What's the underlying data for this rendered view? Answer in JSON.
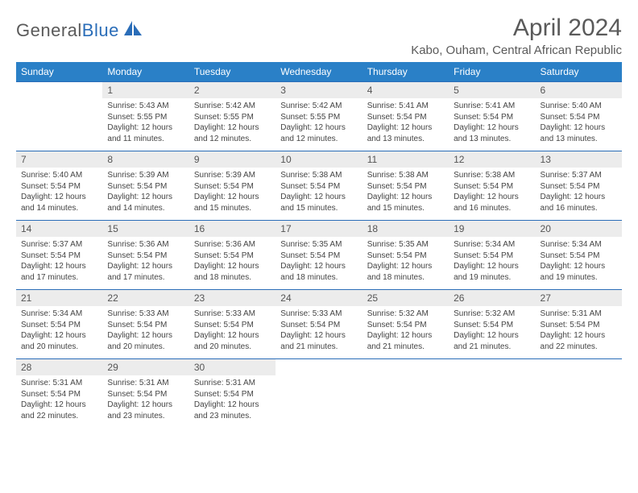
{
  "logo": {
    "word1": "General",
    "word2": "Blue"
  },
  "header": {
    "title": "April 2024",
    "location": "Kabo, Ouham, Central African Republic"
  },
  "colors": {
    "header_bg": "#2a80c7",
    "rule": "#2a6db8",
    "daynum_bg": "#ececec",
    "text": "#444444"
  },
  "weekdays": [
    "Sunday",
    "Monday",
    "Tuesday",
    "Wednesday",
    "Thursday",
    "Friday",
    "Saturday"
  ],
  "days": [
    {
      "n": "",
      "sr": "",
      "ss": "",
      "dl": ""
    },
    {
      "n": "1",
      "sr": "Sunrise: 5:43 AM",
      "ss": "Sunset: 5:55 PM",
      "dl": "Daylight: 12 hours and 11 minutes."
    },
    {
      "n": "2",
      "sr": "Sunrise: 5:42 AM",
      "ss": "Sunset: 5:55 PM",
      "dl": "Daylight: 12 hours and 12 minutes."
    },
    {
      "n": "3",
      "sr": "Sunrise: 5:42 AM",
      "ss": "Sunset: 5:55 PM",
      "dl": "Daylight: 12 hours and 12 minutes."
    },
    {
      "n": "4",
      "sr": "Sunrise: 5:41 AM",
      "ss": "Sunset: 5:54 PM",
      "dl": "Daylight: 12 hours and 13 minutes."
    },
    {
      "n": "5",
      "sr": "Sunrise: 5:41 AM",
      "ss": "Sunset: 5:54 PM",
      "dl": "Daylight: 12 hours and 13 minutes."
    },
    {
      "n": "6",
      "sr": "Sunrise: 5:40 AM",
      "ss": "Sunset: 5:54 PM",
      "dl": "Daylight: 12 hours and 13 minutes."
    },
    {
      "n": "7",
      "sr": "Sunrise: 5:40 AM",
      "ss": "Sunset: 5:54 PM",
      "dl": "Daylight: 12 hours and 14 minutes."
    },
    {
      "n": "8",
      "sr": "Sunrise: 5:39 AM",
      "ss": "Sunset: 5:54 PM",
      "dl": "Daylight: 12 hours and 14 minutes."
    },
    {
      "n": "9",
      "sr": "Sunrise: 5:39 AM",
      "ss": "Sunset: 5:54 PM",
      "dl": "Daylight: 12 hours and 15 minutes."
    },
    {
      "n": "10",
      "sr": "Sunrise: 5:38 AM",
      "ss": "Sunset: 5:54 PM",
      "dl": "Daylight: 12 hours and 15 minutes."
    },
    {
      "n": "11",
      "sr": "Sunrise: 5:38 AM",
      "ss": "Sunset: 5:54 PM",
      "dl": "Daylight: 12 hours and 15 minutes."
    },
    {
      "n": "12",
      "sr": "Sunrise: 5:38 AM",
      "ss": "Sunset: 5:54 PM",
      "dl": "Daylight: 12 hours and 16 minutes."
    },
    {
      "n": "13",
      "sr": "Sunrise: 5:37 AM",
      "ss": "Sunset: 5:54 PM",
      "dl": "Daylight: 12 hours and 16 minutes."
    },
    {
      "n": "14",
      "sr": "Sunrise: 5:37 AM",
      "ss": "Sunset: 5:54 PM",
      "dl": "Daylight: 12 hours and 17 minutes."
    },
    {
      "n": "15",
      "sr": "Sunrise: 5:36 AM",
      "ss": "Sunset: 5:54 PM",
      "dl": "Daylight: 12 hours and 17 minutes."
    },
    {
      "n": "16",
      "sr": "Sunrise: 5:36 AM",
      "ss": "Sunset: 5:54 PM",
      "dl": "Daylight: 12 hours and 18 minutes."
    },
    {
      "n": "17",
      "sr": "Sunrise: 5:35 AM",
      "ss": "Sunset: 5:54 PM",
      "dl": "Daylight: 12 hours and 18 minutes."
    },
    {
      "n": "18",
      "sr": "Sunrise: 5:35 AM",
      "ss": "Sunset: 5:54 PM",
      "dl": "Daylight: 12 hours and 18 minutes."
    },
    {
      "n": "19",
      "sr": "Sunrise: 5:34 AM",
      "ss": "Sunset: 5:54 PM",
      "dl": "Daylight: 12 hours and 19 minutes."
    },
    {
      "n": "20",
      "sr": "Sunrise: 5:34 AM",
      "ss": "Sunset: 5:54 PM",
      "dl": "Daylight: 12 hours and 19 minutes."
    },
    {
      "n": "21",
      "sr": "Sunrise: 5:34 AM",
      "ss": "Sunset: 5:54 PM",
      "dl": "Daylight: 12 hours and 20 minutes."
    },
    {
      "n": "22",
      "sr": "Sunrise: 5:33 AM",
      "ss": "Sunset: 5:54 PM",
      "dl": "Daylight: 12 hours and 20 minutes."
    },
    {
      "n": "23",
      "sr": "Sunrise: 5:33 AM",
      "ss": "Sunset: 5:54 PM",
      "dl": "Daylight: 12 hours and 20 minutes."
    },
    {
      "n": "24",
      "sr": "Sunrise: 5:33 AM",
      "ss": "Sunset: 5:54 PM",
      "dl": "Daylight: 12 hours and 21 minutes."
    },
    {
      "n": "25",
      "sr": "Sunrise: 5:32 AM",
      "ss": "Sunset: 5:54 PM",
      "dl": "Daylight: 12 hours and 21 minutes."
    },
    {
      "n": "26",
      "sr": "Sunrise: 5:32 AM",
      "ss": "Sunset: 5:54 PM",
      "dl": "Daylight: 12 hours and 21 minutes."
    },
    {
      "n": "27",
      "sr": "Sunrise: 5:31 AM",
      "ss": "Sunset: 5:54 PM",
      "dl": "Daylight: 12 hours and 22 minutes."
    },
    {
      "n": "28",
      "sr": "Sunrise: 5:31 AM",
      "ss": "Sunset: 5:54 PM",
      "dl": "Daylight: 12 hours and 22 minutes."
    },
    {
      "n": "29",
      "sr": "Sunrise: 5:31 AM",
      "ss": "Sunset: 5:54 PM",
      "dl": "Daylight: 12 hours and 23 minutes."
    },
    {
      "n": "30",
      "sr": "Sunrise: 5:31 AM",
      "ss": "Sunset: 5:54 PM",
      "dl": "Daylight: 12 hours and 23 minutes."
    },
    {
      "n": "",
      "sr": "",
      "ss": "",
      "dl": ""
    },
    {
      "n": "",
      "sr": "",
      "ss": "",
      "dl": ""
    },
    {
      "n": "",
      "sr": "",
      "ss": "",
      "dl": ""
    },
    {
      "n": "",
      "sr": "",
      "ss": "",
      "dl": ""
    }
  ]
}
